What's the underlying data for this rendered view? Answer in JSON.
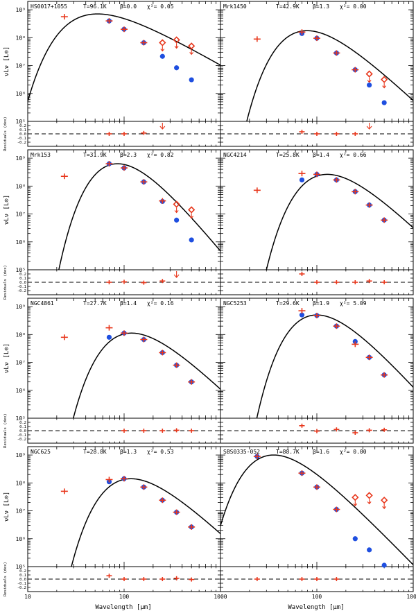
{
  "chart_data": {
    "type": "scatter",
    "xlabel": "Wavelength [μm]",
    "ylabel": "νLν [L⊙]",
    "residual_label": "Residuals (dex)",
    "xscale": "log",
    "xlim": [
      10,
      1000
    ],
    "ylim_log": [
      5,
      9.3
    ],
    "x_tick_labels": [
      "10",
      "100",
      "1000"
    ],
    "y_tick_labels": [
      "10⁵",
      "10⁶",
      "10⁷",
      "10⁸",
      "10⁹"
    ],
    "res_tick_labels": [
      "0.2",
      "0.1",
      "0.0",
      "-0.1",
      "-0.2"
    ],
    "panels": [
      {
        "name": "HS0017+1055",
        "T": "T=96.1K",
        "beta": "β=0.0",
        "chi2": "χ²= 0.05",
        "model_T": 96.1,
        "model_beta": 0.0,
        "model_peak_log": 8.85,
        "observed": [
          [
            24,
            8.75
          ],
          [
            70,
            8.6
          ],
          [
            100,
            8.3
          ],
          [
            160,
            7.82
          ]
        ],
        "model_points": [
          [
            70,
            8.6
          ],
          [
            100,
            8.3
          ],
          [
            160,
            7.82
          ],
          [
            250,
            7.33
          ],
          [
            350,
            6.92
          ],
          [
            500,
            6.49
          ]
        ],
        "upper_limits": [
          [
            250,
            7.82
          ],
          [
            350,
            7.92
          ],
          [
            500,
            7.7
          ]
        ],
        "residuals": [
          [
            70,
            0.0
          ],
          [
            100,
            0.0
          ],
          [
            160,
            0.02
          ]
        ],
        "residual_arrows": [
          250
        ]
      },
      {
        "name": "Mrk1450",
        "T": "T=42.9K",
        "beta": "β=1.3",
        "chi2": "χ²= 0.00",
        "model_T": 42.9,
        "model_beta": 1.3,
        "model_peak_log": 8.25,
        "observed": [
          [
            24,
            7.95
          ],
          [
            70,
            8.2
          ],
          [
            100,
            7.98
          ],
          [
            160,
            7.45
          ],
          [
            250,
            6.85
          ]
        ],
        "model_points": [
          [
            70,
            8.15
          ],
          [
            100,
            7.98
          ],
          [
            160,
            7.45
          ],
          [
            250,
            6.85
          ],
          [
            350,
            6.3
          ],
          [
            500,
            5.67
          ]
        ],
        "upper_limits": [
          [
            350,
            6.7
          ],
          [
            500,
            6.5
          ]
        ],
        "residuals": [
          [
            70,
            0.05
          ],
          [
            100,
            0.0
          ],
          [
            160,
            0.0
          ],
          [
            250,
            0.0
          ]
        ],
        "residual_arrows": [
          350
        ]
      },
      {
        "name": "Mrk153",
        "T": "T=31.9K",
        "beta": "β=2.3",
        "chi2": "χ²= 0.82",
        "model_T": 31.9,
        "model_beta": 2.3,
        "model_peak_log": 8.8,
        "observed": [
          [
            24,
            8.35
          ],
          [
            70,
            8.8
          ],
          [
            100,
            8.65
          ],
          [
            160,
            8.15
          ],
          [
            250,
            7.47
          ]
        ],
        "model_points": [
          [
            70,
            8.8
          ],
          [
            100,
            8.65
          ],
          [
            160,
            8.15
          ],
          [
            250,
            7.45
          ],
          [
            350,
            6.78
          ],
          [
            500,
            6.07
          ]
        ],
        "upper_limits": [
          [
            350,
            7.35
          ],
          [
            500,
            7.15
          ]
        ],
        "residuals": [
          [
            70,
            0.0
          ],
          [
            100,
            0.01
          ],
          [
            160,
            -0.01
          ],
          [
            250,
            0.03
          ]
        ],
        "residual_arrows": [
          350
        ]
      },
      {
        "name": "NGC4214",
        "T": "T=25.8K",
        "beta": "β=1.4",
        "chi2": "χ²= 0.66",
        "model_T": 25.8,
        "model_beta": 1.4,
        "model_peak_log": 8.42,
        "observed": [
          [
            24,
            7.85
          ],
          [
            70,
            8.45
          ],
          [
            100,
            8.42
          ],
          [
            160,
            8.22
          ],
          [
            250,
            7.8
          ],
          [
            350,
            7.32
          ],
          [
            500,
            6.78
          ]
        ],
        "model_points": [
          [
            70,
            8.22
          ],
          [
            100,
            8.42
          ],
          [
            160,
            8.22
          ],
          [
            250,
            7.8
          ],
          [
            350,
            7.32
          ],
          [
            500,
            6.78
          ]
        ],
        "upper_limits": [],
        "residuals": [
          [
            70,
            0.2
          ],
          [
            100,
            0.0
          ],
          [
            160,
            0.0
          ],
          [
            250,
            0.0
          ],
          [
            350,
            0.03
          ],
          [
            500,
            0.0
          ]
        ],
        "residual_arrows": []
      },
      {
        "name": "NGC4861",
        "T": "T=27.7K",
        "beta": "β=1.4",
        "chi2": "χ²= 0.16",
        "model_T": 27.7,
        "model_beta": 1.4,
        "model_peak_log": 8.05,
        "observed": [
          [
            24,
            7.9
          ],
          [
            70,
            8.24
          ],
          [
            100,
            8.05
          ],
          [
            160,
            7.82
          ],
          [
            250,
            7.35
          ],
          [
            350,
            6.9
          ],
          [
            500,
            6.3
          ]
        ],
        "model_points": [
          [
            70,
            7.9
          ],
          [
            100,
            8.05
          ],
          [
            160,
            7.82
          ],
          [
            250,
            7.35
          ],
          [
            350,
            6.9
          ],
          [
            500,
            6.3
          ]
        ],
        "upper_limits": [],
        "residuals": [
          [
            100,
            0.0
          ],
          [
            160,
            0.0
          ],
          [
            250,
            0.0
          ],
          [
            350,
            0.01
          ],
          [
            500,
            0.0
          ]
        ],
        "residual_arrows": []
      },
      {
        "name": "NGC5253",
        "T": "T=29.6K",
        "beta": "β=1.9",
        "chi2": "χ²= 5.09",
        "model_T": 29.6,
        "model_beta": 1.9,
        "model_peak_log": 8.7,
        "observed": [
          [
            70,
            8.85
          ],
          [
            100,
            8.68
          ],
          [
            160,
            8.3
          ],
          [
            250,
            7.65
          ],
          [
            350,
            7.18
          ],
          [
            500,
            6.55
          ]
        ],
        "model_points": [
          [
            70,
            8.7
          ],
          [
            100,
            8.68
          ],
          [
            160,
            8.3
          ],
          [
            250,
            7.75
          ],
          [
            350,
            7.18
          ],
          [
            500,
            6.55
          ]
        ],
        "upper_limits": [],
        "residuals": [
          [
            70,
            0.12
          ],
          [
            100,
            -0.01
          ],
          [
            160,
            0.03
          ],
          [
            250,
            -0.05
          ],
          [
            350,
            0.01
          ],
          [
            500,
            0.02
          ]
        ],
        "residual_arrows": []
      },
      {
        "name": "NGC625",
        "T": "T=28.8K",
        "beta": "β=1.3",
        "chi2": "χ²= 0.53",
        "model_T": 28.8,
        "model_beta": 1.3,
        "model_peak_log": 8.15,
        "observed": [
          [
            24,
            7.7
          ],
          [
            70,
            8.12
          ],
          [
            100,
            8.15
          ],
          [
            160,
            7.85
          ],
          [
            250,
            7.38
          ],
          [
            350,
            6.95
          ],
          [
            500,
            6.42
          ]
        ],
        "model_points": [
          [
            70,
            8.04
          ],
          [
            100,
            8.15
          ],
          [
            160,
            7.85
          ],
          [
            250,
            7.38
          ],
          [
            350,
            6.95
          ],
          [
            500,
            6.42
          ]
        ],
        "upper_limits": [],
        "residuals": [
          [
            70,
            0.08
          ],
          [
            100,
            0.0
          ],
          [
            160,
            0.0
          ],
          [
            250,
            0.0
          ],
          [
            350,
            0.02
          ],
          [
            500,
            -0.01
          ]
        ],
        "residual_arrows": []
      },
      {
        "name": "SBS0335-052",
        "T": "T=88.7K",
        "beta": "β=1.6",
        "chi2": "χ²= 0.00",
        "model_T": 88.7,
        "model_beta": 1.6,
        "model_peak_log": 9.0,
        "observed": [
          [
            24,
            8.95
          ],
          [
            70,
            8.35
          ],
          [
            100,
            7.85
          ],
          [
            160,
            7.05
          ]
        ],
        "model_points": [
          [
            24,
            8.95
          ],
          [
            70,
            8.35
          ],
          [
            100,
            7.85
          ],
          [
            160,
            7.05
          ],
          [
            250,
            6.0
          ],
          [
            350,
            5.6
          ],
          [
            500,
            5.05
          ]
        ],
        "upper_limits": [
          [
            250,
            7.48
          ],
          [
            350,
            7.55
          ],
          [
            500,
            7.38
          ]
        ],
        "residuals": [
          [
            24,
            0.0
          ],
          [
            70,
            0.0
          ],
          [
            100,
            0.0
          ],
          [
            160,
            0.0
          ]
        ],
        "residual_arrows": []
      }
    ]
  }
}
